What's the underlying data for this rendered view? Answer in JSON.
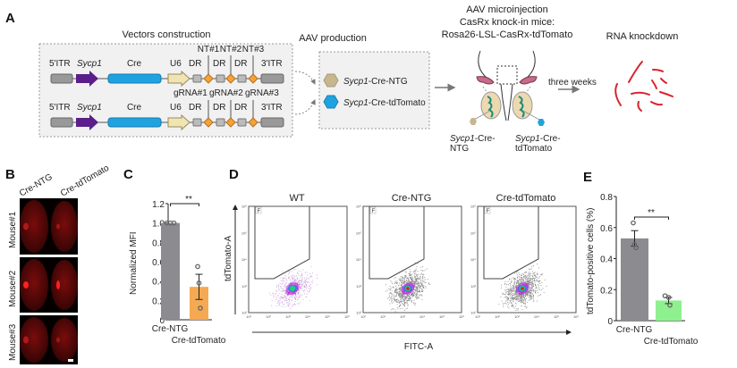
{
  "panel_a": {
    "label": "A",
    "vectors": {
      "title": "Vectors construction",
      "row1": {
        "itr5": "5'ITR",
        "promoter": "Sycp1",
        "cre": "Cre",
        "u6": "U6",
        "dr": "DR",
        "itr3": "3'ITR",
        "spacers": [
          "NT#1",
          "NT#2",
          "NT#3"
        ]
      },
      "row2": {
        "itr5": "5'ITR",
        "promoter": "Sycp1",
        "cre": "Cre",
        "u6": "U6",
        "dr": "DR",
        "itr3": "3'ITR",
        "spacers": [
          "gRNA#1",
          "gRNA#2",
          "gRNA#3"
        ]
      }
    },
    "aav": {
      "title": "AAV production",
      "items": [
        {
          "italic": "Sycp1",
          "rest": "-Cre-NTG",
          "color": "#c8b68f"
        },
        {
          "italic": "Sycp1",
          "rest": "-Cre-tdTomato",
          "color": "#1fa3e0"
        }
      ]
    },
    "injection": {
      "title_lines": [
        "AAV microinjection",
        "CasRx knock-in mice:",
        "Rosa26-LSL-CasRx-tdTomato"
      ],
      "left_label": {
        "italic": "Sycp1",
        "rest": "-Cre-",
        "line2": "NTG"
      },
      "right_label": {
        "italic": "Sycp1",
        "rest": "-Cre-",
        "line2": "tdTomato"
      }
    },
    "arrow_label": "three weeks",
    "knockdown": {
      "title": "RNA knockdown"
    }
  },
  "panel_b": {
    "label": "B",
    "columns": [
      "Cre-NTG",
      "Cre-tdTomato"
    ],
    "rows": [
      "Mouse#1",
      "Mouse#2",
      "Mouse#3"
    ]
  },
  "panel_c": {
    "label": "C",
    "significance": "**",
    "chart_data": {
      "type": "bar",
      "categories": [
        "Cre-NTG",
        "Cre-tdTomato"
      ],
      "values": [
        1.0,
        0.34
      ],
      "errors": [
        0,
        0.13
      ],
      "points": [
        [
          1.0,
          1.0,
          1.0
        ],
        [
          0.55,
          0.38,
          0.12
        ]
      ],
      "colors": [
        "#8c8c90",
        "#f5a952"
      ],
      "ylabel": "Normalized MFI",
      "ylim": [
        0,
        1.2
      ],
      "yticks": [
        "0",
        "0.2",
        "0.4",
        "0.6",
        "0.8",
        "1.0",
        "1.2"
      ]
    }
  },
  "panel_d": {
    "label": "D",
    "plots": [
      {
        "title": "WT",
        "gate": "F"
      },
      {
        "title": "Cre-NTG",
        "gate": "F"
      },
      {
        "title": "Cre-tdTomato",
        "gate": "F"
      }
    ],
    "xlabel": "FITC-A",
    "ylabel": "tdTomato-A",
    "xticks": [
      "10¹",
      "10²",
      "10³",
      "10⁴",
      "10⁵",
      "10⁶"
    ],
    "yticks": [
      "10²",
      "10³",
      "10⁴",
      "10⁵",
      "10⁶"
    ]
  },
  "panel_e": {
    "label": "E",
    "significance": "**",
    "chart_data": {
      "type": "bar",
      "categories": [
        "Cre-NTG",
        "Cre-tdTomato"
      ],
      "values": [
        0.53,
        0.13
      ],
      "errors": [
        0.05,
        0.02
      ],
      "points": [
        [
          0.63,
          0.49,
          0.47
        ],
        [
          0.16,
          0.15,
          0.1
        ]
      ],
      "colors": [
        "#8c8c90",
        "#8ef08e"
      ],
      "ylabel": "tdTomato-positive cells (%)",
      "ylim": [
        0,
        0.8
      ],
      "yticks": [
        "0",
        "0.2",
        "0.4",
        "0.6",
        "0.8"
      ]
    }
  }
}
